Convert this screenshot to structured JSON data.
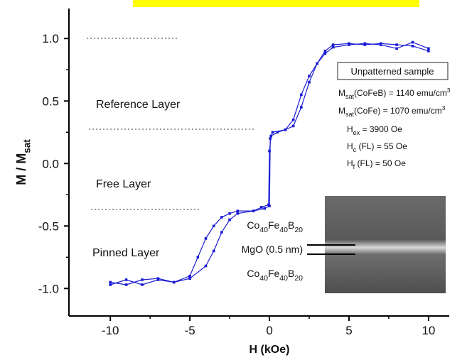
{
  "chart_data": {
    "type": "line",
    "xlim": [
      -12.6,
      11.3
    ],
    "ylim": [
      -1.22,
      1.24
    ],
    "xticks": [
      -10,
      -5,
      0,
      5,
      10
    ],
    "yticks": [
      {
        "value": 1,
        "label": "1.0"
      },
      0.5,
      {
        "value": 0,
        "label": "0.0"
      },
      -0.5,
      {
        "value": -1,
        "label": "-1.0"
      }
    ],
    "x_label": "H (kOe)",
    "y_label": [
      {
        "text": "M / M"
      },
      {
        "sub": "sat"
      }
    ],
    "series": [
      {
        "color": "#1a1ad6",
        "x": [
          -10,
          -9,
          -8,
          -7,
          -6,
          -5,
          -4.5,
          -4,
          -3.5,
          -3,
          -2.5,
          -2,
          -1,
          -0.3,
          0,
          0.05,
          0.2,
          1,
          1.5,
          2,
          2.5,
          3,
          3.5,
          4,
          5,
          6,
          7,
          8,
          9,
          10
        ],
        "values": [
          -0.95,
          -0.97,
          -0.93,
          -0.92,
          -0.95,
          -0.9,
          -0.75,
          -0.6,
          -0.5,
          -0.43,
          -0.4,
          -0.38,
          -0.38,
          -0.36,
          -0.34,
          0.2,
          0.25,
          0.27,
          0.3,
          0.45,
          0.65,
          0.8,
          0.9,
          0.95,
          0.96,
          0.95,
          0.96,
          0.95,
          0.94,
          0.9
        ]
      },
      {
        "color": "#1a1ad6",
        "x": [
          10,
          9,
          8,
          7,
          6,
          5,
          4,
          3.5,
          3,
          2.5,
          2,
          1.5,
          1,
          0.5,
          0.1,
          0,
          -0.05,
          -0.5,
          -1,
          -2,
          -2.5,
          -3,
          -3.5,
          -4,
          -5,
          -6,
          -7,
          -8,
          -9,
          -10
        ],
        "values": [
          0.92,
          0.97,
          0.92,
          0.95,
          0.96,
          0.95,
          0.93,
          0.88,
          0.8,
          0.7,
          0.55,
          0.35,
          0.27,
          0.25,
          0.22,
          0.1,
          -0.33,
          -0.35,
          -0.38,
          -0.4,
          -0.45,
          -0.55,
          -0.7,
          -0.82,
          -0.92,
          -0.95,
          -0.93,
          -0.97,
          -0.93,
          -0.97
        ]
      }
    ],
    "annotations": {
      "layers": [
        "Reference Layer",
        "Free Layer",
        "Pinned Layer"
      ],
      "box": "Unpatterned sample",
      "parameters": [
        [
          {
            "text": "M"
          },
          {
            "sub": "sat"
          },
          {
            "text": "(CoFeB) = 1140 emu/cm"
          },
          {
            "sup": "3"
          }
        ],
        [
          {
            "text": "M"
          },
          {
            "sub": "sat"
          },
          {
            "text": "(CoFe) = 1070 emu/cm"
          },
          {
            "sup": "3"
          }
        ],
        [
          {
            "text": "H"
          },
          {
            "sub": "ex"
          },
          {
            "text": " = 3900 Oe"
          }
        ],
        [
          {
            "text": "H"
          },
          {
            "sub": "c"
          },
          {
            "text": " (FL) = 55 Oe"
          }
        ],
        [
          {
            "text": "H"
          },
          {
            "sub": "f"
          },
          {
            "text": " (FL) = 50 Oe"
          }
        ]
      ],
      "inset_labels": [
        [
          {
            "text": "Co"
          },
          {
            "sub": "40"
          },
          {
            "text": "Fe"
          },
          {
            "sub": "40"
          },
          {
            "text": "B"
          },
          {
            "sub": "20"
          }
        ],
        [
          {
            "text": "MgO (0.5 nm)"
          }
        ],
        [
          {
            "text": "Co"
          },
          {
            "sub": "40"
          },
          {
            "text": "Fe"
          },
          {
            "sub": "40"
          },
          {
            "text": "B"
          },
          {
            "sub": "20"
          }
        ]
      ]
    }
  }
}
